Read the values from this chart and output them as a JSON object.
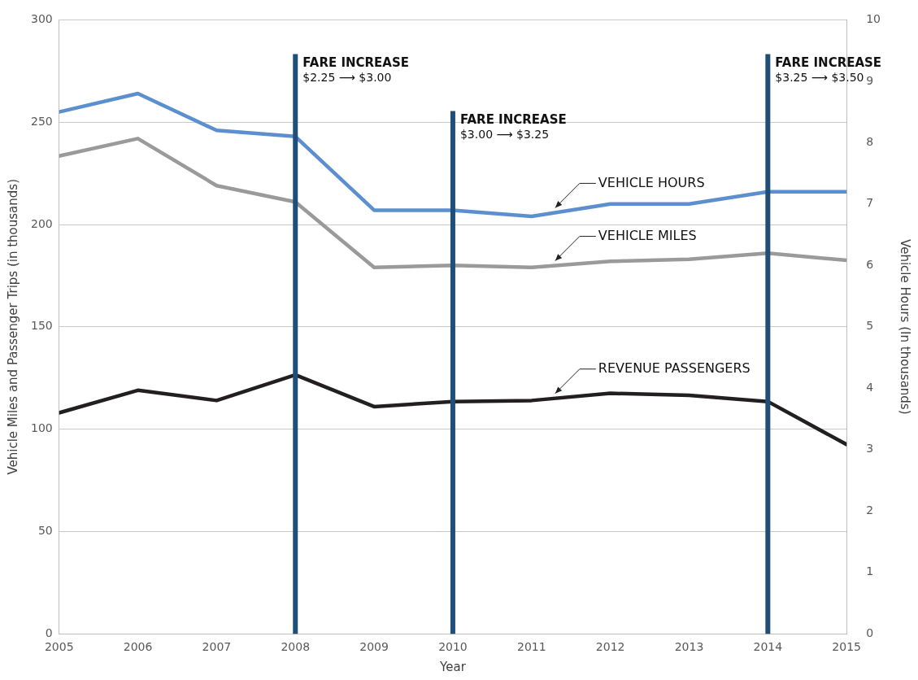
{
  "chart_data": {
    "type": "line",
    "xlabel": "Year",
    "ylabel": "Vehicle Miles and Passenger Trips (in thousands)",
    "y2label": "Vehicle Hours (In thousands)",
    "x": [
      2005,
      2006,
      2007,
      2008,
      2009,
      2010,
      2011,
      2012,
      2013,
      2014,
      2015
    ],
    "series": [
      {
        "name": "VEHICLE HOURS",
        "color": "#5b8fd0",
        "axis": "y2",
        "values": [
          8.5,
          8.8,
          8.2,
          8.1,
          6.9,
          6.9,
          6.8,
          7.0,
          7.0,
          7.2,
          7.2
        ]
      },
      {
        "name": "VEHICLE MILES",
        "color": "#9a9a9a",
        "values": [
          233.5,
          242,
          219,
          211,
          179,
          180,
          179,
          182,
          183,
          186,
          182.5
        ]
      },
      {
        "name": "REVENUE PASSENGERS",
        "color": "#231f20",
        "values": [
          108,
          119,
          114,
          126.5,
          111,
          113.5,
          114,
          117.5,
          116.5,
          113.5,
          92.5
        ]
      }
    ],
    "xlim": [
      2005,
      2015
    ],
    "xticks": [
      2005,
      2006,
      2007,
      2008,
      2009,
      2010,
      2011,
      2012,
      2013,
      2014,
      2015
    ],
    "ylim": [
      0,
      300
    ],
    "yticks": [
      0,
      50,
      100,
      150,
      200,
      250,
      300
    ],
    "y2lim": [
      0,
      10
    ],
    "y2ticks": [
      0,
      1,
      2,
      3,
      4,
      5,
      6,
      7,
      8,
      9,
      10
    ],
    "ref_lines": [
      {
        "axis": "x",
        "value": 2008,
        "label": "FARE INCREASE\n$2.25 ⟶ $3.00",
        "color": "#1f4e79"
      },
      {
        "axis": "x",
        "value": 2010,
        "label": "FARE INCREASE\n$3.00 ⟶ $3.25",
        "color": "#1f4e79"
      },
      {
        "axis": "x",
        "value": 2014,
        "label": "FARE INCREASE\n$3.25 ⟶ $3.50",
        "color": "#1f4e79"
      }
    ],
    "grid": "y",
    "legend": false,
    "marker": "none",
    "line_style": "solid"
  }
}
